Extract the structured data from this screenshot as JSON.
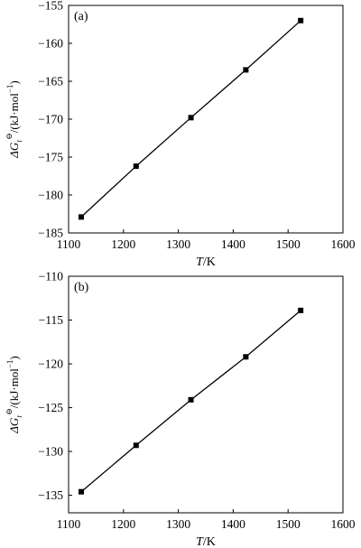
{
  "chart_data": [
    {
      "type": "line",
      "panel_label": "(a)",
      "xlabel_italic": "T",
      "xlabel_rest": "/K",
      "ylabel_prefix": "ΔG",
      "ylabel_sub": "r",
      "ylabel_sup": "⊖",
      "ylabel_unit": "/(kJ·mol",
      "ylabel_unit_sup": "−1",
      "ylabel_end": ")",
      "xlim": [
        1100,
        1600
      ],
      "ylim": [
        -185,
        -155
      ],
      "xticks": [
        1100,
        1200,
        1300,
        1400,
        1500,
        1600
      ],
      "yticks": [
        -185,
        -180,
        -175,
        -170,
        -165,
        -160,
        -155
      ],
      "xtick_labels": [
        "1100",
        "1200",
        "1300",
        "1400",
        "1500",
        "1600"
      ],
      "ytick_labels": [
        "−185",
        "−180",
        "−175",
        "−170",
        "−165",
        "−160",
        "−155"
      ],
      "grid": false,
      "series": [
        {
          "x": [
            1123,
            1223,
            1323,
            1423,
            1523
          ],
          "y": [
            -182.9,
            -176.2,
            -169.8,
            -163.5,
            -157.0
          ]
        }
      ]
    },
    {
      "type": "line",
      "panel_label": "(b)",
      "xlabel_italic": "T",
      "xlabel_rest": "/K",
      "ylabel_prefix": "ΔG",
      "ylabel_sub": "r",
      "ylabel_sup": "⊖",
      "ylabel_unit": "/(kJ·mol",
      "ylabel_unit_sup": "−1",
      "ylabel_end": ")",
      "xlim": [
        1100,
        1600
      ],
      "ylim": [
        -137,
        -110
      ],
      "xticks": [
        1100,
        1200,
        1300,
        1400,
        1500,
        1600
      ],
      "yticks": [
        -135,
        -130,
        -125,
        -120,
        -115,
        -110
      ],
      "xtick_labels": [
        "1100",
        "1200",
        "1300",
        "1400",
        "1500",
        "1600"
      ],
      "ytick_labels": [
        "−135",
        "−130",
        "−125",
        "−120",
        "−115",
        "−110"
      ],
      "grid": false,
      "series": [
        {
          "x": [
            1123,
            1223,
            1323,
            1423,
            1523
          ],
          "y": [
            -134.6,
            -129.3,
            -124.1,
            -119.2,
            -113.9
          ]
        }
      ]
    }
  ]
}
